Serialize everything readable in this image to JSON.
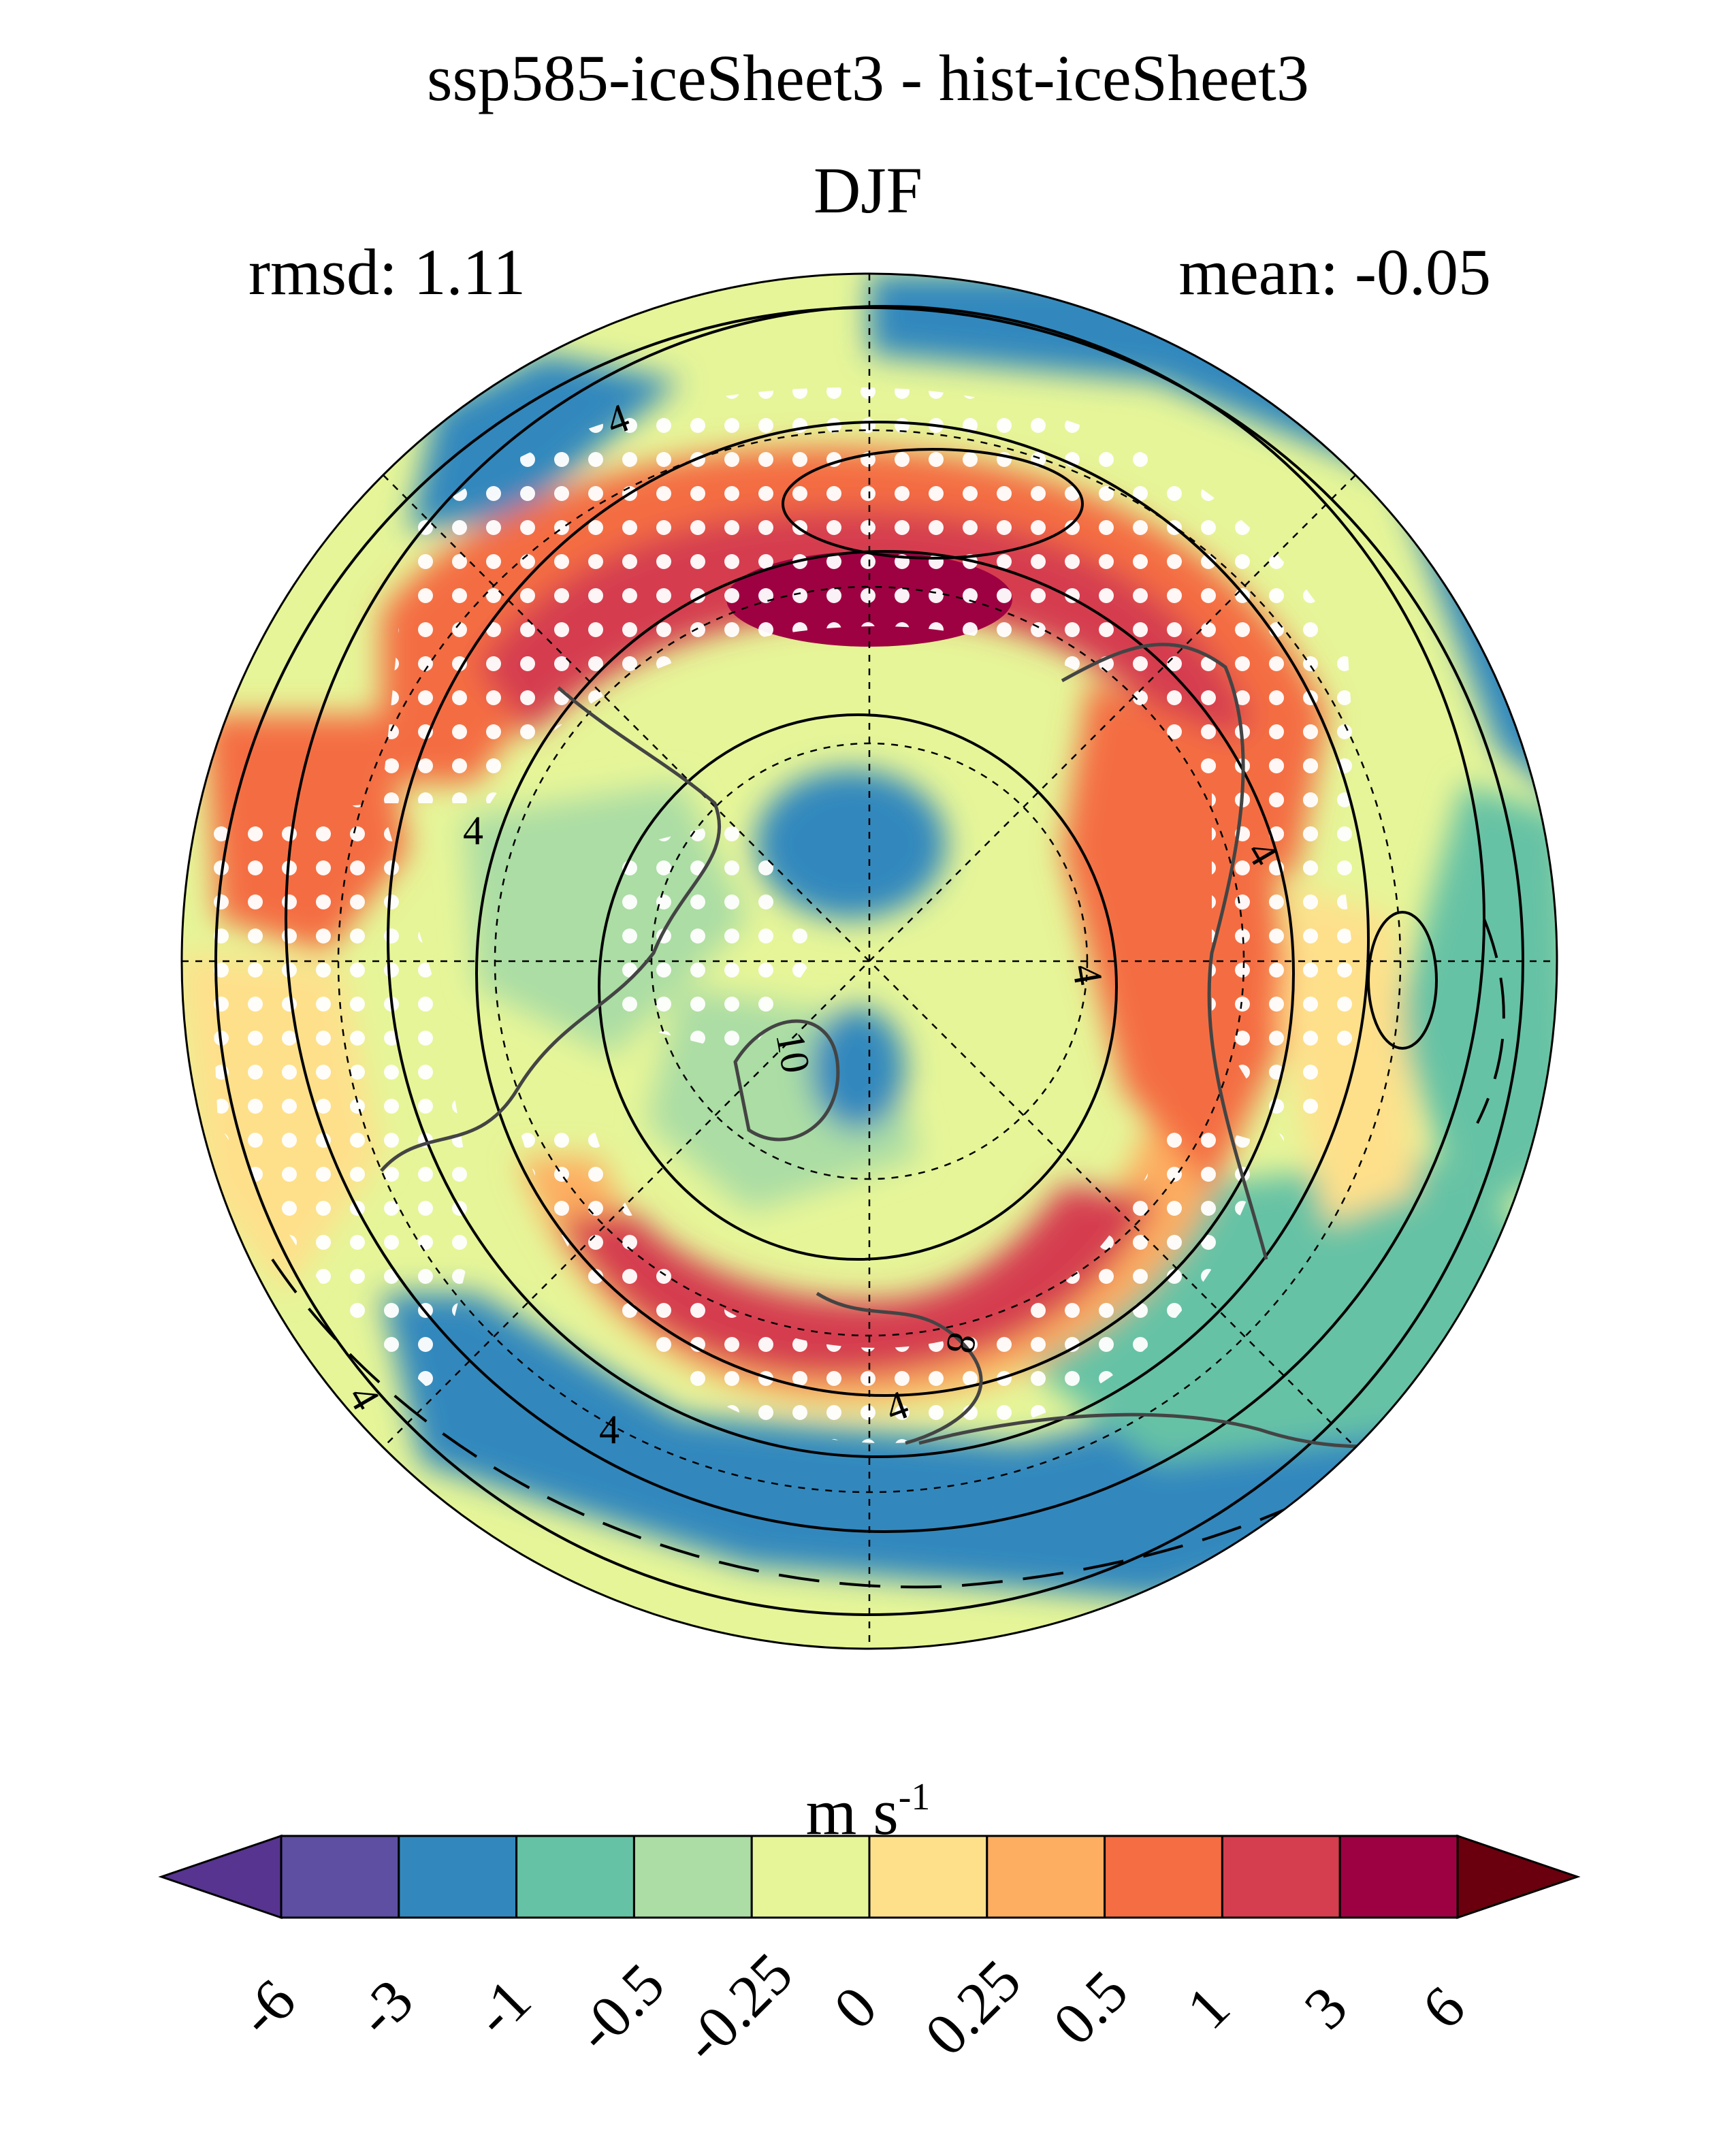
{
  "map": {
    "title": "ssp585-iceSheet3 - hist-iceSheet3",
    "season": "DJF",
    "rmsd_label": "rmsd: 1.11",
    "mean_label": "mean: -0.05",
    "projection": "north-polar-stereographic",
    "stippling": "white dots mark significant regions",
    "contour_labels": [
      "4",
      "4",
      "4",
      "4",
      "4",
      "4",
      "4",
      "8",
      "10"
    ]
  },
  "colorbar": {
    "unit_base": "m s",
    "unit_exp": "-1",
    "tick_labels": [
      "-6",
      "-3",
      "-1",
      "-0.5",
      "-0.25",
      "0",
      "0.25",
      "0.5",
      "1",
      "3",
      "6"
    ],
    "colors": [
      "#5e4fa2",
      "#3288bd",
      "#66c2a5",
      "#abdda4",
      "#e6f598",
      "#fee08b",
      "#fdae61",
      "#f46d43",
      "#d53e4f",
      "#9e0142"
    ],
    "under_color": "#56348f",
    "over_color": "#6a000d"
  }
}
